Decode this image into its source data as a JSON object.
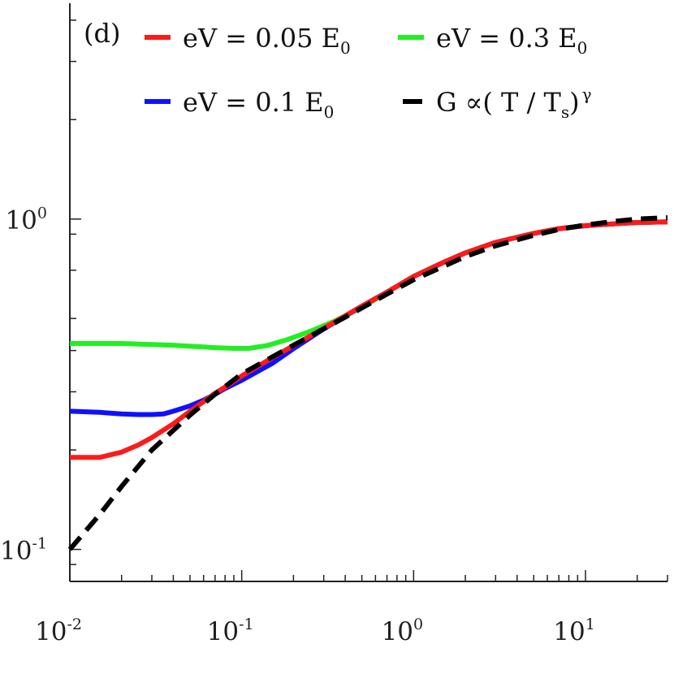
{
  "chart_data": {
    "type": "line",
    "panel_label": "(d)",
    "title": "",
    "xlabel": "",
    "ylabel": "",
    "x_scale": "log",
    "y_scale": "log",
    "xlim": [
      0.01,
      30
    ],
    "ylim": [
      0.08,
      4.5
    ],
    "x_ticks": [
      {
        "base": "10",
        "exp": "-2",
        "value": 0.01
      },
      {
        "base": "10",
        "exp": "-1",
        "value": 0.1
      },
      {
        "base": "10",
        "exp": "0",
        "value": 1
      },
      {
        "base": "10",
        "exp": "1",
        "value": 10
      }
    ],
    "y_ticks": [
      {
        "base": "10",
        "exp": "-1",
        "value": 0.1
      },
      {
        "base": "10",
        "exp": "0",
        "value": 1
      }
    ],
    "legend_placement": "top",
    "series": [
      {
        "name": "eV = 0.05 E0",
        "label_main": "eV = 0.05 E",
        "label_sub": "0",
        "color": "#ff1a1a",
        "style": "solid",
        "points": [
          [
            0.01,
            0.19
          ],
          [
            0.015,
            0.19
          ],
          [
            0.02,
            0.197
          ],
          [
            0.025,
            0.207
          ],
          [
            0.03,
            0.218
          ],
          [
            0.04,
            0.24
          ],
          [
            0.05,
            0.262
          ],
          [
            0.06,
            0.28
          ],
          [
            0.07,
            0.297
          ],
          [
            0.08,
            0.31
          ],
          [
            0.1,
            0.335
          ],
          [
            0.15,
            0.38
          ],
          [
            0.2,
            0.414
          ],
          [
            0.3,
            0.467
          ],
          [
            0.5,
            0.545
          ],
          [
            0.7,
            0.601
          ],
          [
            1.0,
            0.67
          ],
          [
            1.5,
            0.74
          ],
          [
            2.0,
            0.79
          ],
          [
            3.0,
            0.85
          ],
          [
            5.0,
            0.905
          ],
          [
            7.0,
            0.935
          ],
          [
            10.0,
            0.955
          ],
          [
            15.0,
            0.968
          ],
          [
            20.0,
            0.976
          ],
          [
            30.0,
            0.98
          ]
        ]
      },
      {
        "name": "eV = 0.1 E0",
        "label_main": "eV = 0.1 E",
        "label_sub": "0",
        "color": "#1010ff",
        "style": "solid",
        "points": [
          [
            0.01,
            0.262
          ],
          [
            0.015,
            0.26
          ],
          [
            0.02,
            0.257
          ],
          [
            0.025,
            0.256
          ],
          [
            0.03,
            0.256
          ],
          [
            0.035,
            0.257
          ],
          [
            0.04,
            0.262
          ],
          [
            0.05,
            0.272
          ],
          [
            0.06,
            0.283
          ],
          [
            0.07,
            0.295
          ],
          [
            0.08,
            0.307
          ],
          [
            0.1,
            0.325
          ],
          [
            0.15,
            0.365
          ],
          [
            0.2,
            0.405
          ],
          [
            0.3,
            0.465
          ],
          [
            0.5,
            0.545
          ],
          [
            0.7,
            0.601
          ],
          [
            1.0,
            0.67
          ],
          [
            1.5,
            0.74
          ],
          [
            2.0,
            0.79
          ],
          [
            3.0,
            0.85
          ],
          [
            5.0,
            0.905
          ],
          [
            7.0,
            0.935
          ],
          [
            10.0,
            0.955
          ],
          [
            15.0,
            0.968
          ],
          [
            20.0,
            0.976
          ],
          [
            30.0,
            0.98
          ]
        ]
      },
      {
        "name": "eV = 0.3 E0",
        "label_main": "eV = 0.3 E",
        "label_sub": "0",
        "color": "#22ee22",
        "style": "solid",
        "points": [
          [
            0.01,
            0.42
          ],
          [
            0.02,
            0.42
          ],
          [
            0.03,
            0.417
          ],
          [
            0.04,
            0.415
          ],
          [
            0.05,
            0.412
          ],
          [
            0.07,
            0.408
          ],
          [
            0.09,
            0.406
          ],
          [
            0.11,
            0.406
          ],
          [
            0.14,
            0.414
          ],
          [
            0.18,
            0.43
          ],
          [
            0.25,
            0.457
          ],
          [
            0.35,
            0.492
          ],
          [
            0.5,
            0.54
          ],
          [
            0.7,
            0.6
          ],
          [
            1.0,
            0.67
          ],
          [
            1.5,
            0.74
          ],
          [
            2.0,
            0.79
          ],
          [
            3.0,
            0.85
          ],
          [
            5.0,
            0.905
          ],
          [
            7.0,
            0.935
          ],
          [
            10.0,
            0.955
          ],
          [
            15.0,
            0.968
          ],
          [
            20.0,
            0.976
          ],
          [
            30.0,
            0.98
          ]
        ]
      },
      {
        "name": "G ∝( T / Ts)γ",
        "label_main": "G ∝( T / T",
        "label_sub": "s",
        "label_tail": ")",
        "label_sup": "γ",
        "color": "#000000",
        "style": "dashed",
        "points": [
          [
            0.01,
            0.1
          ],
          [
            0.015,
            0.128
          ],
          [
            0.02,
            0.155
          ],
          [
            0.03,
            0.2
          ],
          [
            0.05,
            0.255
          ],
          [
            0.07,
            0.295
          ],
          [
            0.1,
            0.34
          ],
          [
            0.15,
            0.382
          ],
          [
            0.2,
            0.415
          ],
          [
            0.3,
            0.465
          ],
          [
            0.5,
            0.538
          ],
          [
            0.7,
            0.593
          ],
          [
            1.0,
            0.655
          ],
          [
            1.5,
            0.72
          ],
          [
            2.0,
            0.77
          ],
          [
            3.0,
            0.83
          ],
          [
            5.0,
            0.893
          ],
          [
            7.0,
            0.93
          ],
          [
            10.0,
            0.96
          ],
          [
            15.0,
            0.985
          ],
          [
            20.0,
            1.0
          ],
          [
            30.0,
            1.01
          ]
        ]
      }
    ]
  }
}
